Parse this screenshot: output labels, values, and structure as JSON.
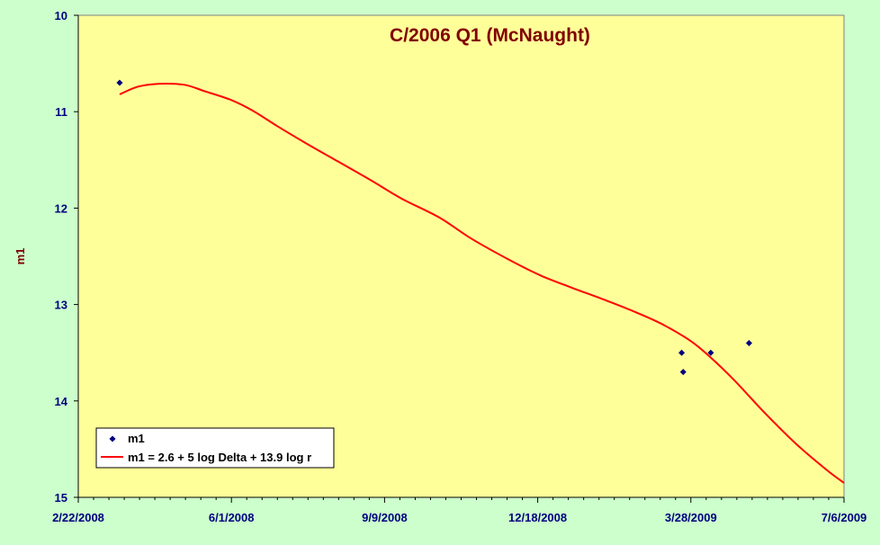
{
  "chart_data": {
    "type": "scatter",
    "title": "C/2006 Q1 (McNaught)",
    "xlabel": "",
    "ylabel": "m1",
    "x_axis": {
      "type": "date",
      "min": "2008-02-22",
      "max": "2009-07-06",
      "tick_labels": [
        "2/22/2008",
        "6/1/2008",
        "9/9/2008",
        "12/18/2008",
        "3/28/2009",
        "7/6/2009"
      ]
    },
    "y_axis": {
      "min": 10,
      "max": 15,
      "reversed": true,
      "tick_labels": [
        "10",
        "11",
        "12",
        "13",
        "14",
        "15"
      ]
    },
    "grid": false,
    "legend_position": "bottom-left",
    "series": [
      {
        "name": "m1",
        "kind": "points",
        "marker": "diamond",
        "color": "#000080",
        "points": [
          {
            "x": "2008-03-20",
            "y": 10.7
          },
          {
            "x": "2009-03-22",
            "y": 13.5
          },
          {
            "x": "2009-03-23",
            "y": 13.7
          },
          {
            "x": "2009-04-10",
            "y": 13.5
          },
          {
            "x": "2009-05-05",
            "y": 13.4
          }
        ]
      },
      {
        "name": "m1 = 2.6 + 5 log Delta + 13.9 log r",
        "kind": "line",
        "color": "#ff0000",
        "points": [
          {
            "x": "2008-03-20",
            "y": 10.82
          },
          {
            "x": "2008-04-01",
            "y": 10.74
          },
          {
            "x": "2008-04-15",
            "y": 10.71
          },
          {
            "x": "2008-05-01",
            "y": 10.72
          },
          {
            "x": "2008-05-15",
            "y": 10.79
          },
          {
            "x": "2008-06-01",
            "y": 10.88
          },
          {
            "x": "2008-06-15",
            "y": 10.99
          },
          {
            "x": "2008-07-01",
            "y": 11.15
          },
          {
            "x": "2008-07-20",
            "y": 11.33
          },
          {
            "x": "2008-08-10",
            "y": 11.52
          },
          {
            "x": "2008-09-01",
            "y": 11.72
          },
          {
            "x": "2008-09-20",
            "y": 11.9
          },
          {
            "x": "2008-10-15",
            "y": 12.1
          },
          {
            "x": "2008-11-05",
            "y": 12.32
          },
          {
            "x": "2008-12-01",
            "y": 12.55
          },
          {
            "x": "2008-12-20",
            "y": 12.7
          },
          {
            "x": "2009-01-10",
            "y": 12.83
          },
          {
            "x": "2009-02-01",
            "y": 12.96
          },
          {
            "x": "2009-02-20",
            "y": 13.08
          },
          {
            "x": "2009-03-10",
            "y": 13.21
          },
          {
            "x": "2009-03-28",
            "y": 13.38
          },
          {
            "x": "2009-04-10",
            "y": 13.55
          },
          {
            "x": "2009-04-25",
            "y": 13.78
          },
          {
            "x": "2009-05-15",
            "y": 14.12
          },
          {
            "x": "2009-06-05",
            "y": 14.45
          },
          {
            "x": "2009-06-25",
            "y": 14.72
          },
          {
            "x": "2009-07-06",
            "y": 14.85
          }
        ]
      }
    ],
    "colors": {
      "plot_background": "#ffff99",
      "page_background": "#ccffcc",
      "title": "#800000",
      "axis_labels": "#000080"
    }
  }
}
